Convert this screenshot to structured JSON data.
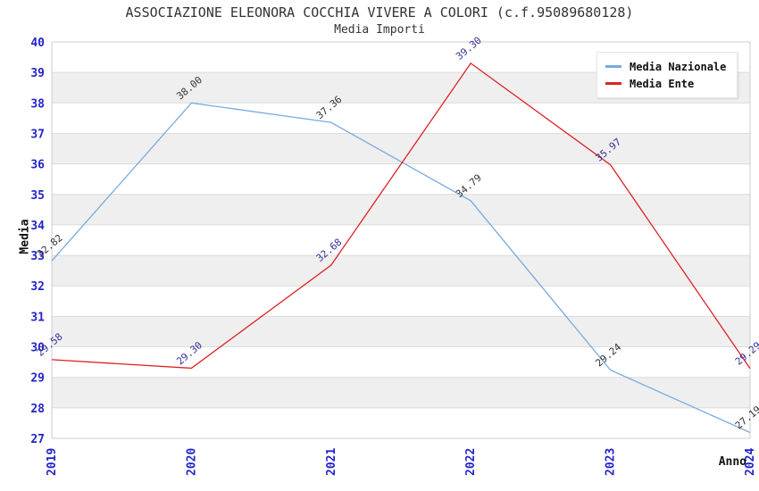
{
  "header": {
    "title": "ASSOCIAZIONE ELEONORA COCCHIA VIVERE A COLORI (c.f.95089680128)",
    "subtitle": "Media Importi"
  },
  "axes": {
    "y_label": "Media",
    "x_label": "Anno"
  },
  "chart_data": {
    "type": "line",
    "title": "ASSOCIAZIONE ELEONORA COCCHIA VIVERE A COLORI (c.f.95089680128)",
    "subtitle": "Media Importi",
    "x": [
      "2019",
      "2020",
      "2021",
      "2022",
      "2023",
      "2024"
    ],
    "series": [
      {
        "name": "Media Nazionale",
        "color": "#78aade",
        "label_color": "#333333",
        "values": [
          32.82,
          38.0,
          37.36,
          34.79,
          29.24,
          27.19
        ]
      },
      {
        "name": "Media Ente",
        "color": "#dd2222",
        "label_color": "#333399",
        "values": [
          29.58,
          29.3,
          32.68,
          39.3,
          35.97,
          29.29
        ]
      }
    ],
    "xlabel": "Anno",
    "ylabel": "Media",
    "ylim": [
      27,
      40
    ],
    "ytick_step": 1,
    "grid": true,
    "legend_position": "top-right",
    "colors": {
      "tick_label": "#2323cb",
      "band": "#efefef",
      "gridline": "#dcdcdc",
      "plot_border": "#cccccc"
    }
  }
}
